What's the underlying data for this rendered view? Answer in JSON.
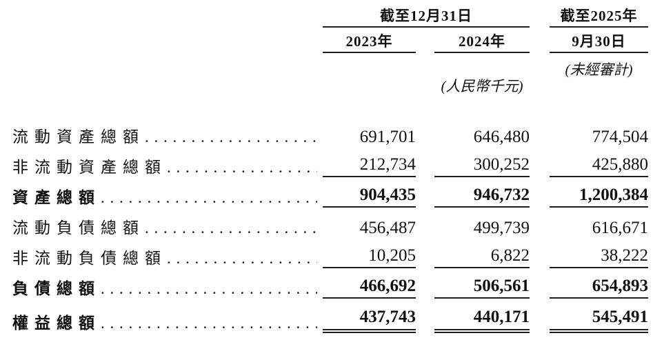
{
  "table": {
    "header": {
      "span_dec31": "截至12月31日",
      "col_2023": "2023年",
      "col_2024": "2024年",
      "span_2025": "截至2025年",
      "col_sep30": "9月30日",
      "unaudited_note": "(未經審計)",
      "currency_note": "(人民幣千元)"
    },
    "rows": [
      {
        "label": "流動資產總額",
        "y2023": "691,701",
        "y2024": "646,480",
        "sep2025": "774,504"
      },
      {
        "label": "非流動資產總額",
        "y2023": "212,734",
        "y2024": "300,252",
        "sep2025": "425,880"
      },
      {
        "label": "資產總額",
        "y2023": "904,435",
        "y2024": "946,732",
        "sep2025": "1,200,384"
      },
      {
        "label": "流動負債總額",
        "y2023": "456,487",
        "y2024": "499,739",
        "sep2025": "616,671"
      },
      {
        "label": "非流動負債總額",
        "y2023": "10,205",
        "y2024": "6,822",
        "sep2025": "38,222"
      },
      {
        "label": "負債總額",
        "y2023": "466,692",
        "y2024": "506,561",
        "sep2025": "654,893"
      },
      {
        "label": "權益總額",
        "y2023": "437,743",
        "y2024": "440,171",
        "sep2025": "545,491"
      }
    ],
    "line_color": "#1c1c1c"
  }
}
